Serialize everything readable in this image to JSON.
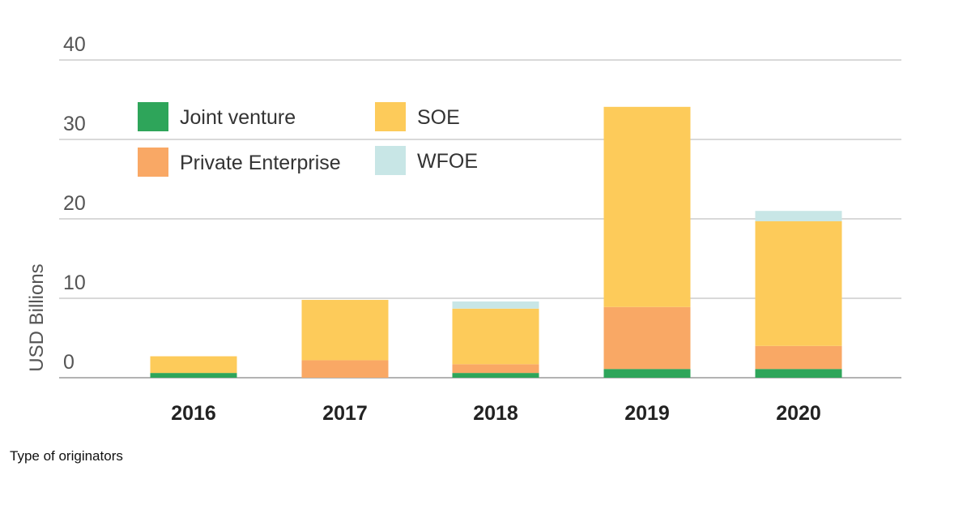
{
  "caption": "Type of originators",
  "chart_data": {
    "type": "bar",
    "stacked": true,
    "title": "",
    "xlabel": "",
    "ylabel": "USD Billions",
    "ylim": [
      0,
      40
    ],
    "yticks": [
      0,
      10,
      20,
      30,
      40
    ],
    "grid": true,
    "legend_position": "top-left",
    "categories": [
      "2016",
      "2017",
      "2018",
      "2019",
      "2020"
    ],
    "series": [
      {
        "name": "Joint venture",
        "color": "#2ea55a",
        "values": [
          0.6,
          0.0,
          0.6,
          1.1,
          1.1
        ]
      },
      {
        "name": "Private Enterprise",
        "color": "#f9a865",
        "values": [
          0.0,
          2.2,
          1.1,
          7.8,
          2.9
        ]
      },
      {
        "name": "SOE",
        "color": "#fdcb5a",
        "values": [
          2.1,
          7.6,
          7.0,
          25.2,
          15.7
        ]
      },
      {
        "name": "WFOE",
        "color": "#c8e6e6",
        "values": [
          0.0,
          0.0,
          0.9,
          0.0,
          1.3
        ]
      }
    ]
  }
}
